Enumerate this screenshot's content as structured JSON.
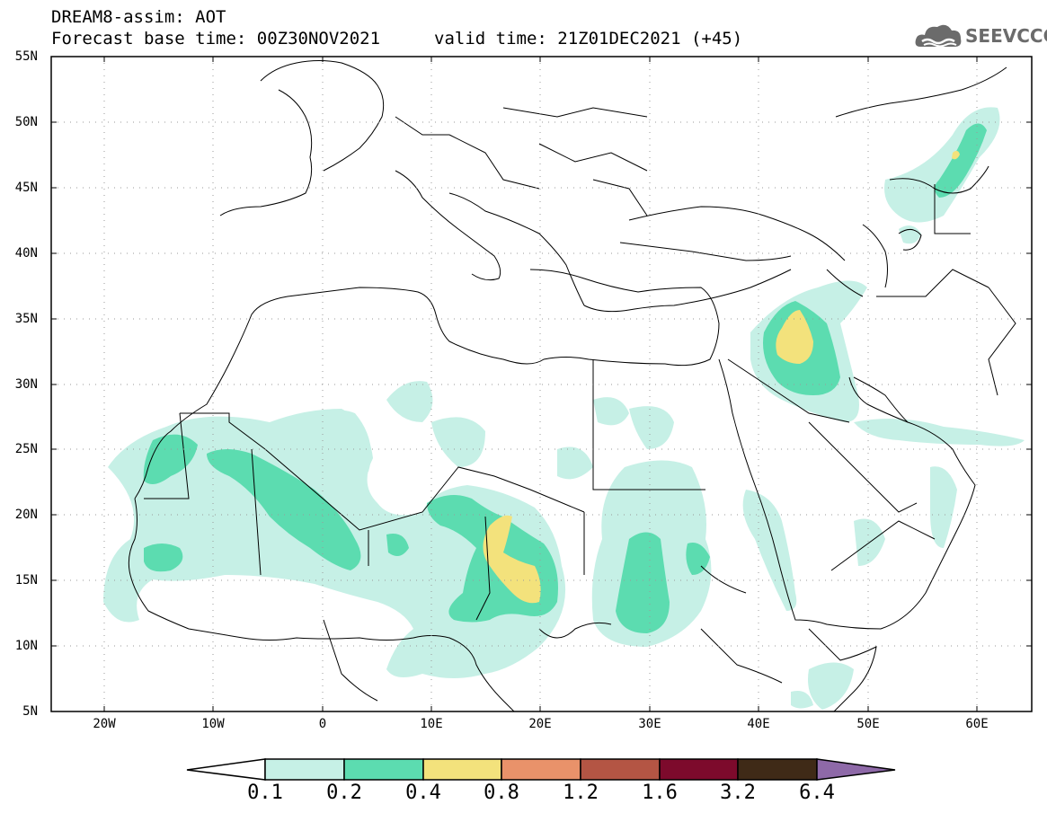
{
  "header": {
    "line1": "DREAM8-assim: AOT",
    "line2": "Forecast base time: 00Z30NOV2021",
    "line3": "valid time: 21Z01DEC2021 (+45)",
    "logo_text": "SEEVCCC"
  },
  "map": {
    "lon_range": [
      -25,
      65
    ],
    "lat_range": [
      5,
      55
    ],
    "lat_labels": [
      "55N",
      "50N",
      "45N",
      "40N",
      "35N",
      "30N",
      "25N",
      "20N",
      "15N",
      "10N",
      "5N"
    ],
    "lon_labels": [
      "20W",
      "10W",
      "0",
      "10E",
      "20E",
      "30E",
      "40E",
      "50E",
      "60E"
    ],
    "grid": "dotted"
  },
  "colorbar": {
    "labels": [
      "0.1",
      "0.2",
      "0.4",
      "0.8",
      "1.2",
      "1.6",
      "3.2",
      "6.4"
    ],
    "colors": [
      "#c6f0e6",
      "#5cdcb0",
      "#f3e27c",
      "#e9926a",
      "#b45544",
      "#7d0a2c",
      "#3f2a17",
      "#8e69a8"
    ]
  }
}
